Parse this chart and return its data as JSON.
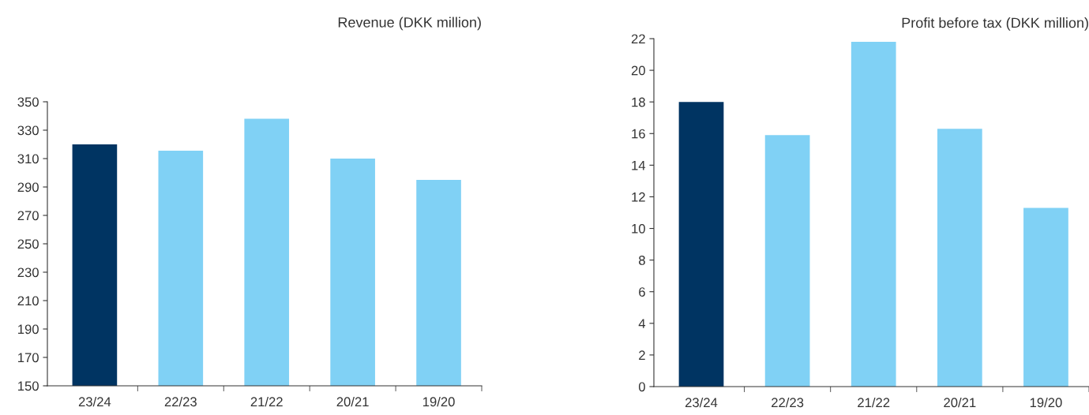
{
  "chart_data": [
    {
      "type": "bar",
      "title": "Revenue (DKK million)",
      "categories": [
        "23/24",
        "22/23",
        "21/22",
        "20/21",
        "19/20"
      ],
      "values": [
        320,
        315.6,
        338,
        310,
        295
      ],
      "colors": [
        "#003462",
        "#80d1f5",
        "#80d1f5",
        "#80d1f5",
        "#80d1f5"
      ],
      "ylim": [
        150,
        350
      ],
      "yticks": [
        150,
        170,
        190,
        210,
        230,
        250,
        270,
        290,
        310,
        330,
        350
      ],
      "grid": false,
      "legend": false
    },
    {
      "type": "bar",
      "title": "Profit before tax (DKK million)",
      "categories": [
        "23/24",
        "22/23",
        "21/22",
        "20/21",
        "19/20"
      ],
      "values": [
        18,
        15.9,
        21.8,
        16.3,
        11.3
      ],
      "colors": [
        "#003462",
        "#80d1f5",
        "#80d1f5",
        "#80d1f5",
        "#80d1f5"
      ],
      "ylim": [
        0,
        22
      ],
      "yticks": [
        0,
        2,
        4,
        6,
        8,
        10,
        12,
        14,
        16,
        18,
        20,
        22
      ],
      "grid": false,
      "legend": false
    }
  ]
}
